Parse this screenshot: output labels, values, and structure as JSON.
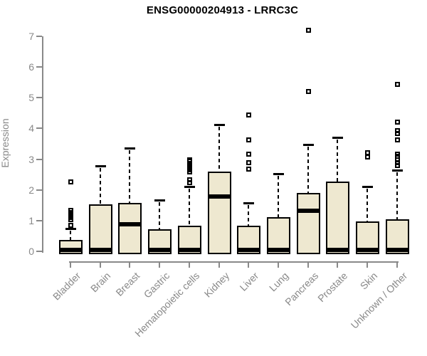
{
  "title": "ENSG00000204913 - LRRC3C",
  "chart_data": {
    "type": "boxplot",
    "title": "ENSG00000204913 - LRRC3C",
    "xlabel": "",
    "ylabel": "Expression",
    "ylim": [
      0,
      7
    ],
    "yticks": [
      0,
      1,
      2,
      3,
      4,
      5,
      6,
      7
    ],
    "grid": false,
    "box_fill_color": "#EEE8D0",
    "box_line_color": "#000000",
    "axis_color": "#898989",
    "categories": [
      "Bladder",
      "Brain",
      "Breast",
      "Gastric",
      "Hematopoietic cells",
      "Kidney",
      "Liver",
      "Lung",
      "Pancreas",
      "Prostate",
      "Skin",
      "Unknown / Other"
    ],
    "series": [
      {
        "category": "Bladder",
        "q1": 0,
        "median": 0.05,
        "q3": 0.35,
        "whisker_low": 0,
        "whisker_high": 0.75,
        "outliers": [
          0.85,
          1.05,
          1.12,
          1.2,
          1.28,
          1.35,
          2.27
        ]
      },
      {
        "category": "Brain",
        "q1": 0,
        "median": 0.05,
        "q3": 1.5,
        "whisker_low": 0,
        "whisker_high": 2.78,
        "outliers": []
      },
      {
        "category": "Breast",
        "q1": 0,
        "median": 0.87,
        "q3": 1.55,
        "whisker_low": 0,
        "whisker_high": 3.35,
        "outliers": []
      },
      {
        "category": "Gastric",
        "q1": 0,
        "median": 0.05,
        "q3": 0.7,
        "whisker_low": 0,
        "whisker_high": 1.68,
        "outliers": []
      },
      {
        "category": "Hematopoietic cells",
        "q1": 0,
        "median": 0.05,
        "q3": 0.82,
        "whisker_low": 0,
        "whisker_high": 2.12,
        "outliers": [
          2.25,
          2.35,
          2.6,
          2.67,
          2.73,
          2.8,
          2.88,
          2.95,
          3.0
        ]
      },
      {
        "category": "Kidney",
        "q1": 0,
        "median": 1.78,
        "q3": 2.57,
        "whisker_low": 0,
        "whisker_high": 4.12,
        "outliers": []
      },
      {
        "category": "Liver",
        "q1": 0,
        "median": 0.05,
        "q3": 0.82,
        "whisker_low": 0,
        "whisker_high": 1.57,
        "outliers": [
          2.7,
          2.9,
          3.18,
          3.65,
          4.45
        ]
      },
      {
        "category": "Lung",
        "q1": 0,
        "median": 0.05,
        "q3": 1.08,
        "whisker_low": 0,
        "whisker_high": 2.53,
        "outliers": []
      },
      {
        "category": "Pancreas",
        "q1": 0,
        "median": 1.33,
        "q3": 1.87,
        "whisker_low": 0,
        "whisker_high": 3.47,
        "outliers": [
          5.22,
          7.2
        ]
      },
      {
        "category": "Prostate",
        "q1": 0,
        "median": 0.05,
        "q3": 2.25,
        "whisker_low": 0,
        "whisker_high": 3.7,
        "outliers": []
      },
      {
        "category": "Skin",
        "q1": 0,
        "median": 0.05,
        "q3": 0.95,
        "whisker_low": 0,
        "whisker_high": 2.1,
        "outliers": [
          3.08,
          3.22
        ]
      },
      {
        "category": "Unknown / Other",
        "q1": 0,
        "median": 0.05,
        "q3": 1.03,
        "whisker_low": 0,
        "whisker_high": 2.65,
        "outliers": [
          2.8,
          2.9,
          3.0,
          3.1,
          3.17,
          3.65,
          3.85,
          3.95,
          4.22,
          5.45
        ]
      }
    ]
  }
}
